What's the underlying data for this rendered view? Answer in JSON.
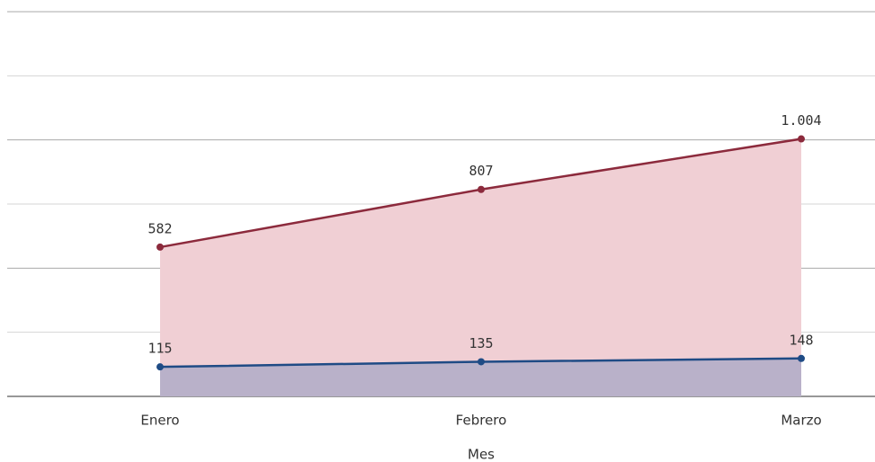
{
  "chart_data": {
    "type": "area",
    "categories": [
      "Enero",
      "Febrero",
      "Marzo"
    ],
    "x_label": "Mes",
    "series": [
      {
        "color": "#8c2a3c",
        "fill": "#f0cfd4",
        "values": [
          582,
          807,
          1004
        ],
        "value_labels": [
          "582",
          "807",
          "1.004"
        ]
      },
      {
        "color": "#1f4b85",
        "fill": "#b9b1c9",
        "values": [
          115,
          135,
          148
        ],
        "value_labels": [
          "115",
          "135",
          "148"
        ]
      }
    ],
    "ylim": [
      0,
      1500
    ],
    "yticks": [
      0,
      250,
      500,
      750,
      1000,
      1250,
      1500
    ],
    "grid": true
  }
}
